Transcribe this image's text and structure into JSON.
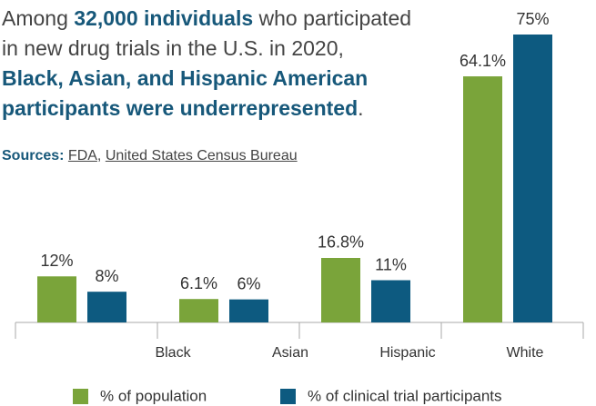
{
  "chart_data": {
    "type": "bar",
    "title_lines": [
      [
        {
          "text": "Among ",
          "bold": false
        },
        {
          "text": "32,000 individuals",
          "bold": true
        },
        {
          "text": " who participated",
          "bold": false
        }
      ],
      [
        {
          "text": "in new drug trials in the U.S. in 2020,",
          "bold": false
        }
      ],
      [
        {
          "text": "Black, Asian, and Hispanic American",
          "bold": true
        }
      ],
      [
        {
          "text": "participants were underrepresented",
          "bold": true
        },
        {
          "text": ".",
          "bold": false
        }
      ]
    ],
    "sources": {
      "label": "Sources:",
      "links": [
        "FDA",
        "United States Census Bureau"
      ],
      "separator": ","
    },
    "categories": [
      "Black",
      "Asian",
      "Hispanic",
      "White"
    ],
    "series": [
      {
        "name": "% of population",
        "color": "#7aa43a",
        "values": [
          12,
          6.1,
          16.8,
          64.1
        ],
        "value_labels": [
          "12%",
          "6.1%",
          "16.8%",
          "64.1%"
        ]
      },
      {
        "name": "% of clinical trial participants",
        "color": "#0d5a80",
        "values": [
          8,
          6,
          11,
          75
        ],
        "value_labels": [
          "8%",
          "6%",
          "11%",
          "75%"
        ]
      }
    ]
  }
}
